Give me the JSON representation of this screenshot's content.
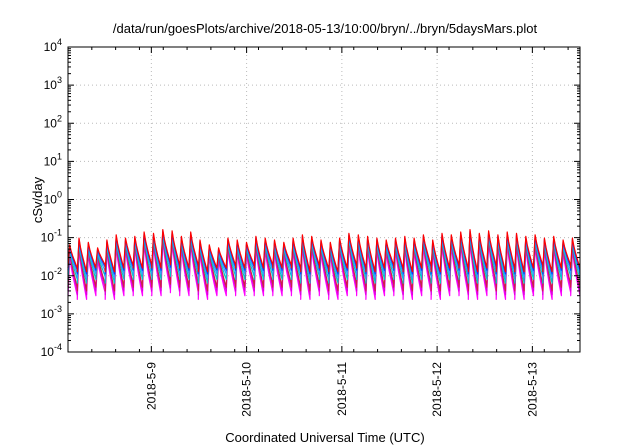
{
  "chart_data": {
    "type": "line",
    "title": "/data/run/goesPlots/archive/2018-05-13/10:00/bryn/../bryn/5daysMars.plot",
    "xlabel": "Coordinated Universal Time (UTC)",
    "ylabel": "cSv/day",
    "yscale": "log",
    "ylim": [
      0.0001,
      10000
    ],
    "xlim": [
      "2018-05-08 03:00",
      "2018-05-13 12:00"
    ],
    "y_ticks": [
      {
        "base": "10",
        "exp": "-4"
      },
      {
        "base": "10",
        "exp": "-3"
      },
      {
        "base": "10",
        "exp": "-2"
      },
      {
        "base": "10",
        "exp": "-1"
      },
      {
        "base": "10",
        "exp": "0"
      },
      {
        "base": "10",
        "exp": "1"
      },
      {
        "base": "10",
        "exp": "2"
      },
      {
        "base": "10",
        "exp": "3"
      },
      {
        "base": "10",
        "exp": "4"
      }
    ],
    "x_ticks": [
      "2018-5-9",
      "2018-5-10",
      "2018-5-11",
      "2018-5-12",
      "2018-5-13"
    ],
    "grid": true,
    "legend": "none",
    "pattern": {
      "description_hidden": true,
      "cycles": 55,
      "peak_values": [
        0.06,
        0.09,
        0.07,
        0.05,
        0.08,
        0.11,
        0.09,
        0.1,
        0.13,
        0.12,
        0.15,
        0.14,
        0.1,
        0.13,
        0.08,
        0.06,
        0.05,
        0.09,
        0.08,
        0.07,
        0.1,
        0.09,
        0.08,
        0.07,
        0.09,
        0.11,
        0.1,
        0.08,
        0.07,
        0.09,
        0.12,
        0.11,
        0.1,
        0.09,
        0.08,
        0.09,
        0.1,
        0.09,
        0.11,
        0.08,
        0.12,
        0.11,
        0.13,
        0.15,
        0.12,
        0.14,
        0.11,
        0.13,
        0.12,
        0.1,
        0.11,
        0.09,
        0.1,
        0.08,
        0.09
      ],
      "trough_values": [
        0.005,
        0.004,
        0.005,
        0.006,
        0.004,
        0.005,
        0.006,
        0.005,
        0.006,
        0.005,
        0.007,
        0.006,
        0.005,
        0.006,
        0.004,
        0.005,
        0.005,
        0.006,
        0.005,
        0.006,
        0.005,
        0.006,
        0.005,
        0.006,
        0.005,
        0.004,
        0.006,
        0.005,
        0.004,
        0.005,
        0.006,
        0.005,
        0.004,
        0.005,
        0.006,
        0.005,
        0.004,
        0.005,
        0.006,
        0.004,
        0.005,
        0.006,
        0.005,
        0.004,
        0.005,
        0.006,
        0.004,
        0.005,
        0.004,
        0.005,
        0.006,
        0.004,
        0.005,
        0.006,
        0.005
      ]
    },
    "series": [
      {
        "color": "#ff00ff",
        "scale": 0.55,
        "min_scale": 0.6
      },
      {
        "color": "#dd00dd",
        "scale": 0.65,
        "min_scale": 0.8
      },
      {
        "color": "#cc2244",
        "scale": 0.75,
        "min_scale": 1.0
      },
      {
        "color": "#00c8c8",
        "scale": 0.8,
        "min_scale": 1.6
      },
      {
        "color": "#3399ff",
        "scale": 0.9,
        "min_scale": 2.2
      },
      {
        "color": "#0040ff",
        "scale": 1.0,
        "min_scale": 2.8
      },
      {
        "color": "#ff0000",
        "scale": 1.08,
        "min_scale": 3.2
      }
    ]
  }
}
